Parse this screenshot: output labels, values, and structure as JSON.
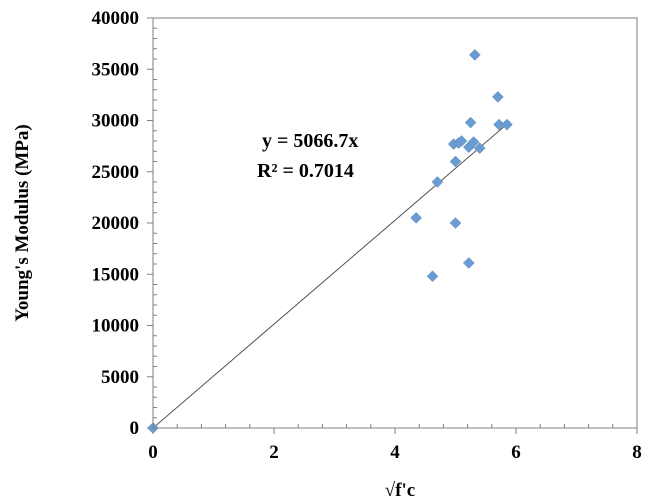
{
  "chart_data": {
    "type": "scatter",
    "title": "",
    "xlabel": "√f'c",
    "ylabel": "Young's Modulus  (MPa)",
    "xlim": [
      0,
      8
    ],
    "ylim": [
      0,
      40000
    ],
    "x_ticks": [
      "0",
      "2",
      "4",
      "6",
      "8"
    ],
    "y_ticks": [
      "0",
      "5000",
      "10000",
      "15000",
      "20000",
      "25000",
      "30000",
      "35000",
      "40000"
    ],
    "grid": false,
    "legend": "none",
    "marker_color": "#6a9bd1",
    "points": [
      {
        "x": 0.0,
        "y": 0
      },
      {
        "x": 4.35,
        "y": 20500
      },
      {
        "x": 4.62,
        "y": 14800
      },
      {
        "x": 4.7,
        "y": 24000
      },
      {
        "x": 4.97,
        "y": 27700
      },
      {
        "x": 5.0,
        "y": 26000
      },
      {
        "x": 5.0,
        "y": 20000
      },
      {
        "x": 5.05,
        "y": 27800
      },
      {
        "x": 5.1,
        "y": 28000
      },
      {
        "x": 5.22,
        "y": 16100
      },
      {
        "x": 5.22,
        "y": 27400
      },
      {
        "x": 5.25,
        "y": 29800
      },
      {
        "x": 5.3,
        "y": 27900
      },
      {
        "x": 5.32,
        "y": 36400
      },
      {
        "x": 5.4,
        "y": 27300
      },
      {
        "x": 5.7,
        "y": 32300
      },
      {
        "x": 5.72,
        "y": 29600
      },
      {
        "x": 5.85,
        "y": 29600
      }
    ],
    "trendline": {
      "slope": 5066.7,
      "x_range": [
        0,
        5.9
      ],
      "equation": "y = 5066.7x",
      "r_squared": "R² = 0.7014"
    }
  }
}
